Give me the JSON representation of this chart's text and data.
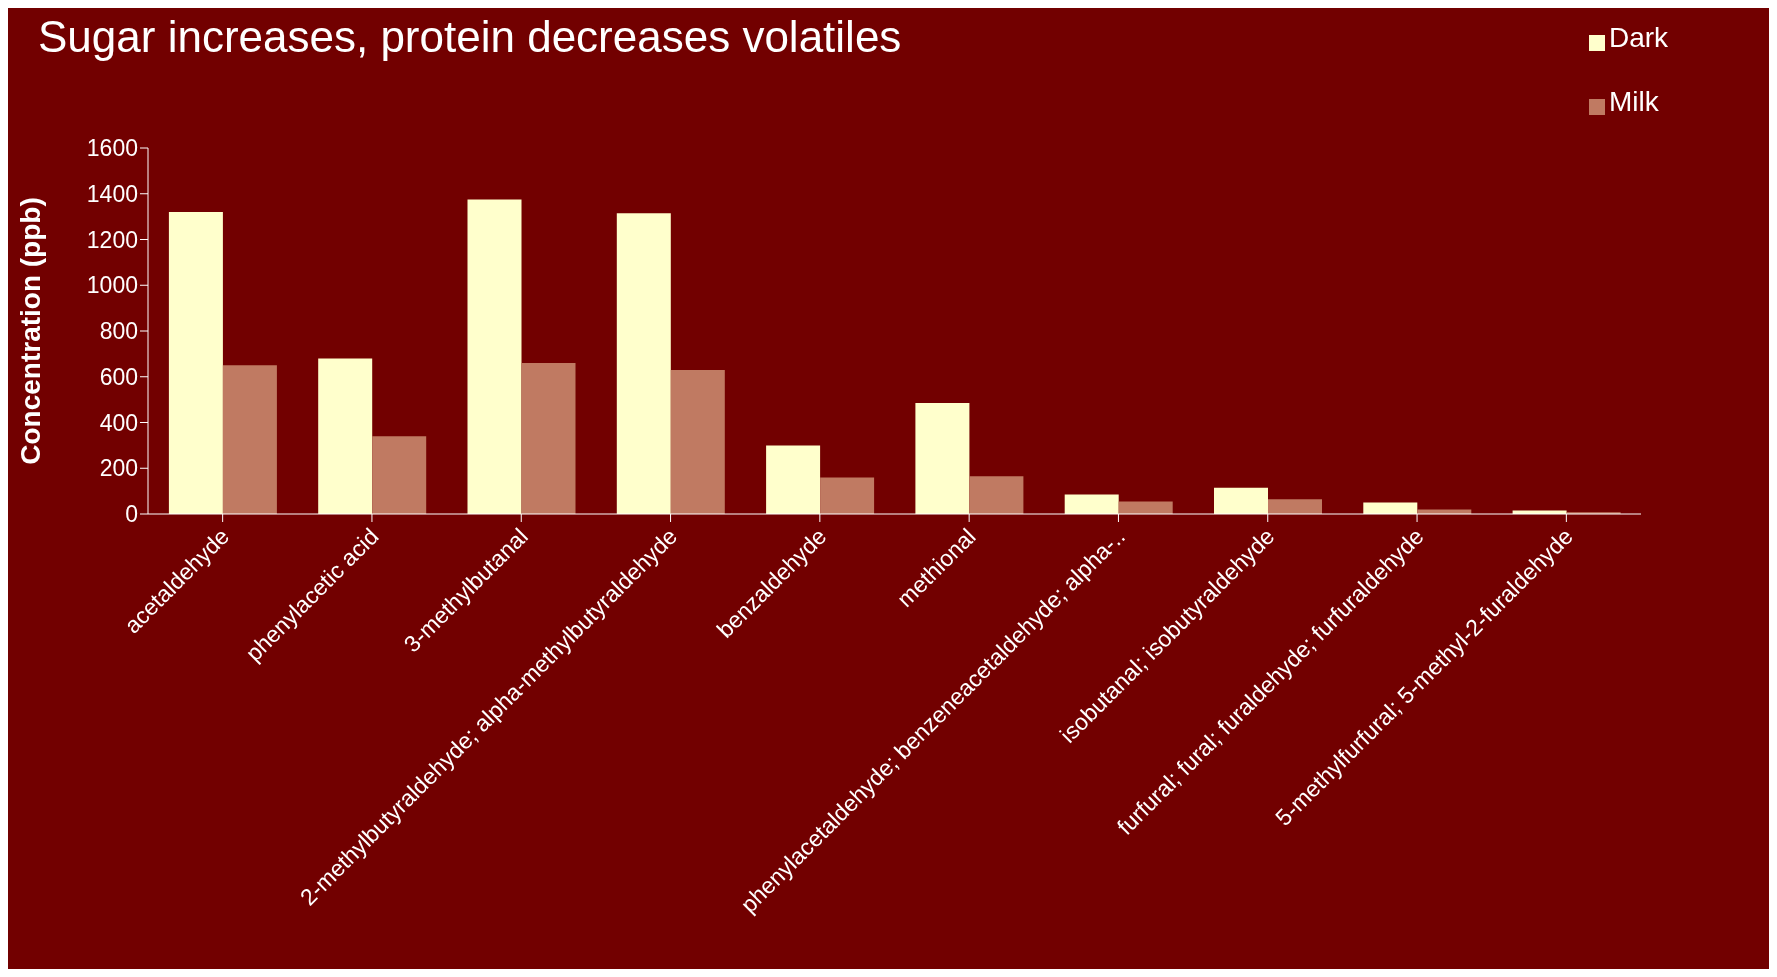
{
  "chart_data": {
    "type": "bar",
    "title": "Sugar increases, protein decreases volatiles",
    "ylabel": "Concentration (ppb)",
    "categories": [
      "acetaldehyde",
      "phenylacetic acid",
      "3-methylbutanal",
      "2-methylbutyraldehyde; alpha-methylbutyraldehyde",
      "benzaldehyde",
      "methional",
      "phenylacetaldehyde; benzeneacetaldehyde; alpha-..",
      "isobutanal; isobutyraldehyde",
      "furfural; fural; furaldehyde; furfuraldehyde",
      "5-methylfurfural; 5-methyl-2-furaldehyde"
    ],
    "series": [
      {
        "name": "Dark",
        "color": "#ffffcc",
        "values": [
          1320,
          680,
          1375,
          1315,
          300,
          485,
          85,
          115,
          50,
          15
        ]
      },
      {
        "name": "Milk",
        "color": "#c07a62",
        "values": [
          650,
          340,
          660,
          630,
          160,
          165,
          55,
          65,
          20,
          8
        ]
      }
    ],
    "ylim": [
      0,
      1600
    ],
    "yticks": [
      0,
      200,
      400,
      600,
      800,
      1000,
      1200,
      1400,
      1600
    ],
    "grid": false,
    "legend": "top right"
  }
}
